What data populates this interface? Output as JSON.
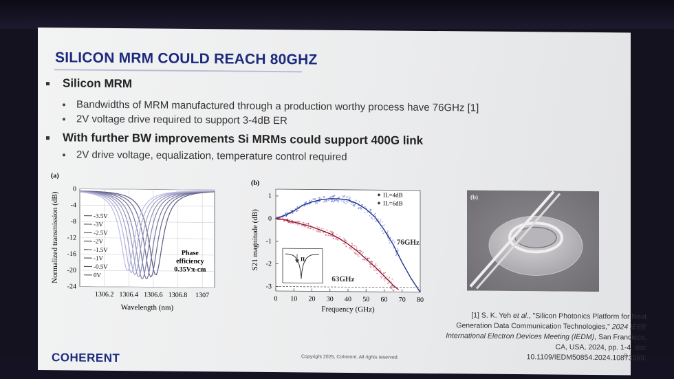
{
  "slide": {
    "title": "SILICON MRM COULD REACH 80GHZ",
    "bullets": [
      {
        "text": "Silicon MRM",
        "subs": [
          "Bandwidths of MRM manufactured through a production worthy process have 76GHz [1]",
          "2V voltage drive required to support 3-4dB ER"
        ]
      },
      {
        "text": "With further BW improvements Si MRMs could support 400G link",
        "subs": [
          "2V drive voltage, equalization, temperature control required"
        ]
      }
    ],
    "reference": {
      "prefix": "[1] S. K. Yeh ",
      "etal": "et al.",
      "title": ", \"Silicon Photonics Platform for Next Generation Data Communication Technologies,\" ",
      "venue": "2024 IEEE International Electron Devices Meeting (IEDM)",
      "rest": ", San Francisco, CA, USA, 2024, pp. 1-4, doi: 10.1109/IEDM50854.2024.10873369."
    },
    "copyright": "Copyright 2025, Coherent. All rights reserved.",
    "page_number": "8",
    "logo": "COHERENT"
  },
  "chart_data": [
    {
      "type": "line",
      "panel": "(a)",
      "xlabel": "Wavelength (nm)",
      "ylabel": "Normalized transmission (dB)",
      "xlim": [
        1306.0,
        1307.1
      ],
      "ylim": [
        -24,
        0
      ],
      "xticks": [
        "1306.2",
        "1306.4",
        "1306.6",
        "1306.8",
        "1307"
      ],
      "yticks": [
        "0",
        "-4",
        "-8",
        "-12",
        "-16",
        "-20",
        "-24"
      ],
      "legend": [
        "-3.5V",
        "-3V",
        "-2.5V",
        "-2V",
        "-1.5V",
        "-1V",
        "-0.5V",
        "0V"
      ],
      "resonance_nm": [
        1306.62,
        1306.58,
        1306.545,
        1306.51,
        1306.48,
        1306.45,
        1306.42,
        1306.39
      ],
      "min_db": [
        -21,
        -21.5,
        -22,
        -22,
        -21.5,
        -21,
        -20.5,
        -20
      ],
      "annotation": [
        "Phase",
        "efficiency",
        "0.35Vπ-cm"
      ],
      "color": "#6a6e9c"
    },
    {
      "type": "scatter",
      "panel": "(b)",
      "xlabel": "Frequency (GHz)",
      "ylabel": "S21 magnitude (dB)",
      "xlim": [
        0,
        80
      ],
      "ylim": [
        -3.2,
        1.3
      ],
      "xticks": [
        "0",
        "10",
        "20",
        "30",
        "40",
        "50",
        "60",
        "70",
        "80"
      ],
      "yticks": [
        "1",
        "0",
        "-1",
        "-2",
        "-3"
      ],
      "series": [
        {
          "name": "IL=4dB",
          "color": "#4a5fc4",
          "x": [
            0,
            5,
            10,
            15,
            20,
            25,
            30,
            35,
            40,
            45,
            50,
            55,
            60,
            65,
            70,
            75,
            80
          ],
          "y": [
            0,
            0.15,
            0.35,
            0.6,
            0.75,
            0.85,
            0.9,
            0.9,
            0.85,
            0.7,
            0.45,
            0.1,
            -0.45,
            -1.1,
            -1.9,
            -2.6,
            -3.2
          ]
        },
        {
          "name": "IL=6dB",
          "color": "#c23a55",
          "x": [
            0,
            5,
            10,
            15,
            20,
            25,
            30,
            35,
            40,
            45,
            50,
            55,
            60,
            65,
            68
          ],
          "y": [
            0,
            -0.05,
            -0.15,
            -0.25,
            -0.35,
            -0.5,
            -0.65,
            -0.85,
            -1.1,
            -1.4,
            -1.75,
            -2.1,
            -2.5,
            -2.9,
            -3.1
          ]
        }
      ],
      "annotations": [
        "76GHz",
        "63GHz"
      ],
      "inset_label": "IL",
      "ref_line_db": -3
    }
  ],
  "photo": {
    "panel": "(b)"
  }
}
